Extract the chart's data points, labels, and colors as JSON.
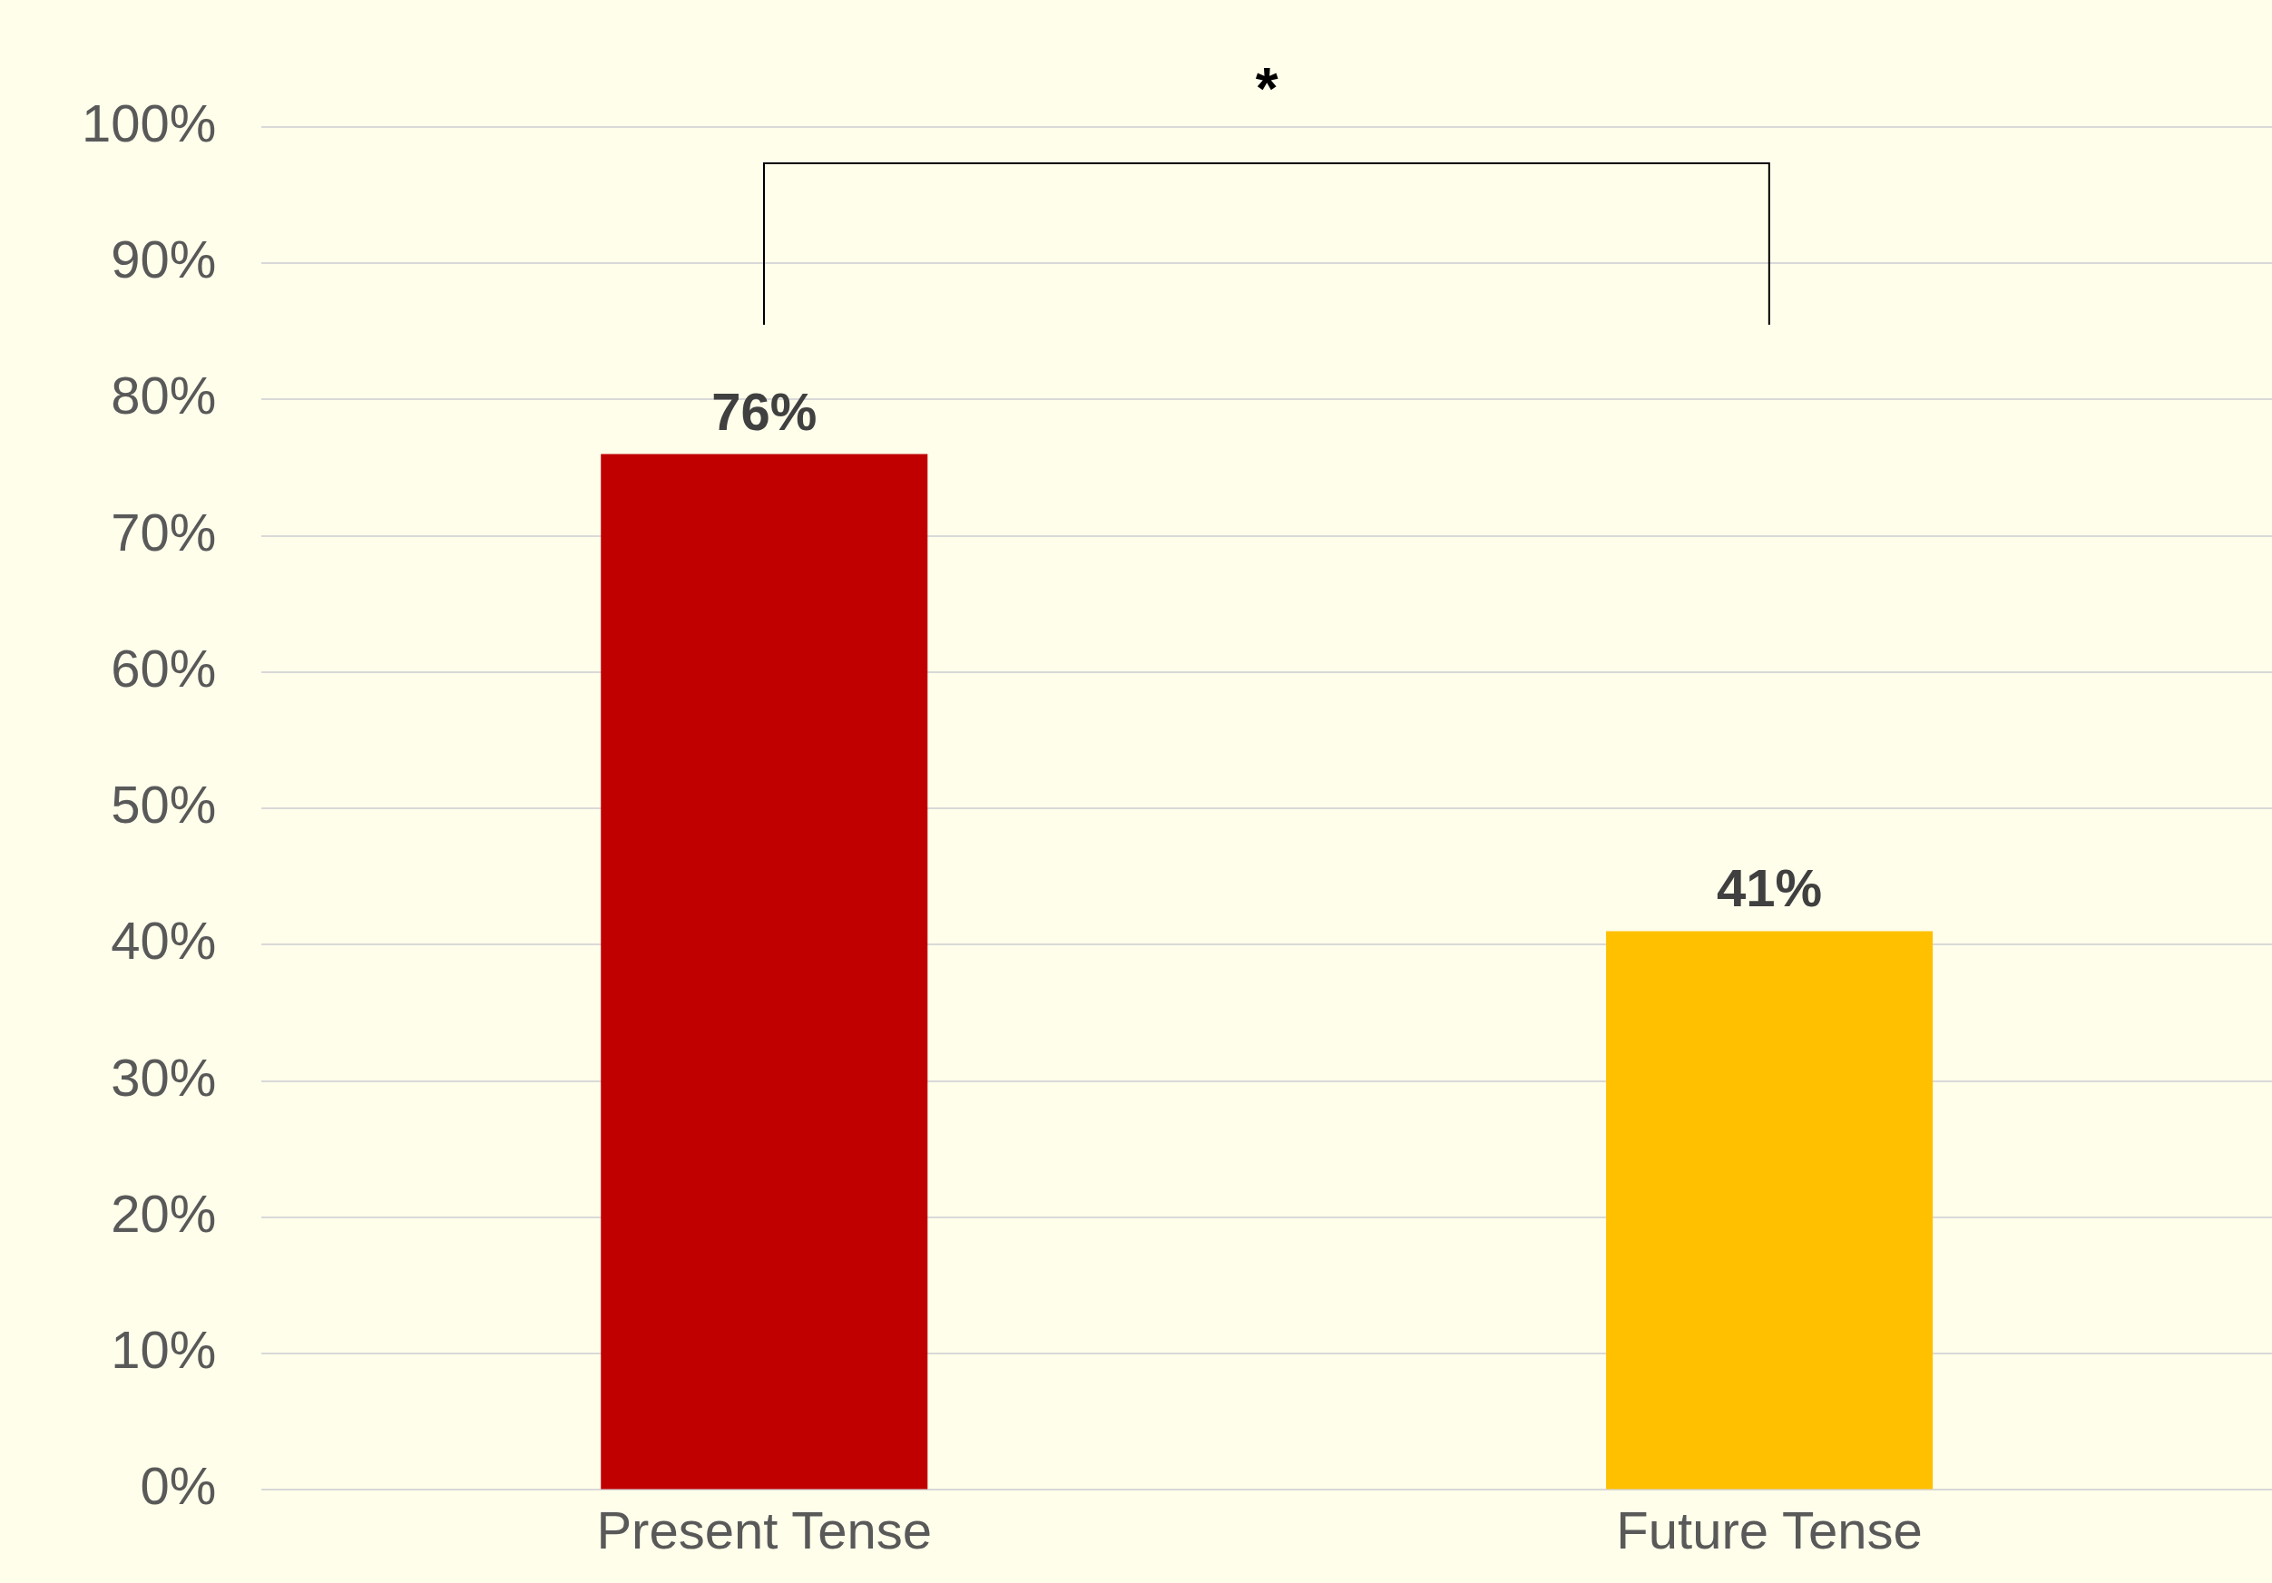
{
  "chart_data": {
    "type": "bar",
    "categories": [
      "Present Tense",
      "Future Tense"
    ],
    "series": [
      {
        "colors": [
          "#c00000",
          "#ffc000"
        ],
        "values": [
          76,
          41
        ],
        "value_labels": [
          "76%",
          "41%"
        ]
      }
    ],
    "ylim": [
      0,
      100
    ],
    "yticks": [
      {
        "value": 0,
        "label": "0%"
      },
      {
        "value": 10,
        "label": "10%"
      },
      {
        "value": 20,
        "label": "20%"
      },
      {
        "value": 30,
        "label": "30%"
      },
      {
        "value": 40,
        "label": "40%"
      },
      {
        "value": 50,
        "label": "50%"
      },
      {
        "value": 60,
        "label": "60%"
      },
      {
        "value": 70,
        "label": "70%"
      },
      {
        "value": 80,
        "label": "80%"
      },
      {
        "value": 90,
        "label": "90%"
      },
      {
        "value": 100,
        "label": "100%"
      }
    ],
    "grid": "y",
    "legend": false,
    "annotations": [
      "*"
    ]
  }
}
